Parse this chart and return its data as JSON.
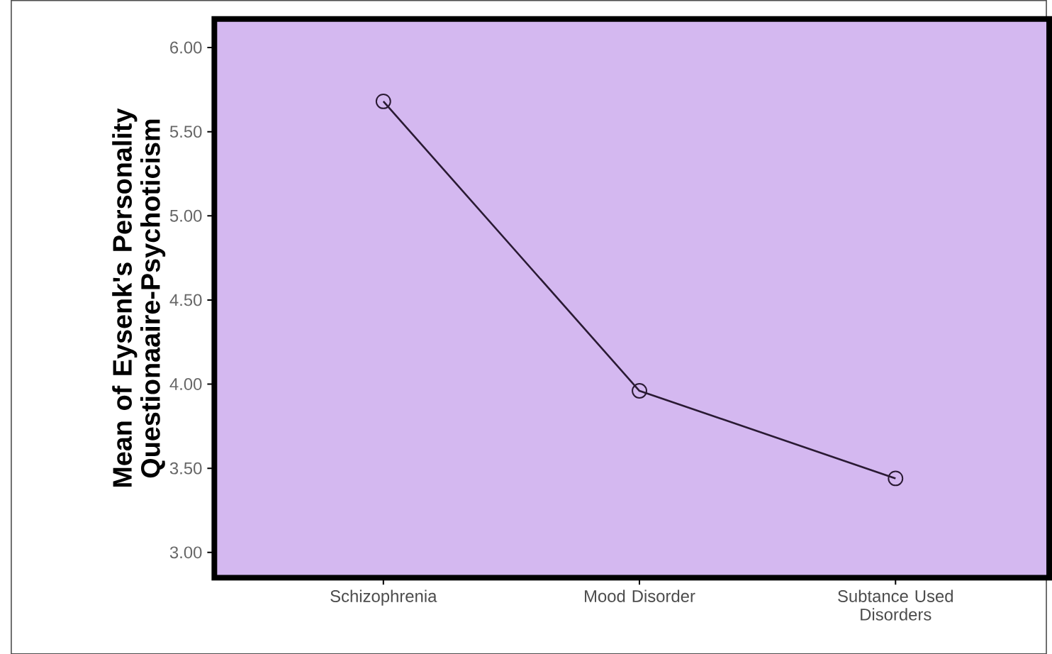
{
  "chart_data": {
    "type": "line",
    "ylabel": "Mean of Eysenk's Personality Questionaaire-Psychoticism",
    "categories": [
      "Schizophrenia",
      "Mood Disorder",
      "Subtance Used Disorders"
    ],
    "series": [
      {
        "color": "#2a1a33",
        "values": [
          5.68,
          3.96,
          3.44
        ]
      }
    ],
    "ylim": [
      2.85,
      6.17
    ],
    "yticks": [
      {
        "value": 3,
        "label": "3.00"
      },
      {
        "value": 3.5,
        "label": "3.50"
      },
      {
        "value": 4,
        "label": "4.00"
      },
      {
        "value": 4.5,
        "label": "4.50"
      },
      {
        "value": 5,
        "label": "5.00"
      },
      {
        "value": 5.5,
        "label": "5.50"
      },
      {
        "value": 6,
        "label": "6.00"
      }
    ],
    "marker": "circle",
    "line_style": "solid",
    "grid": false
  }
}
